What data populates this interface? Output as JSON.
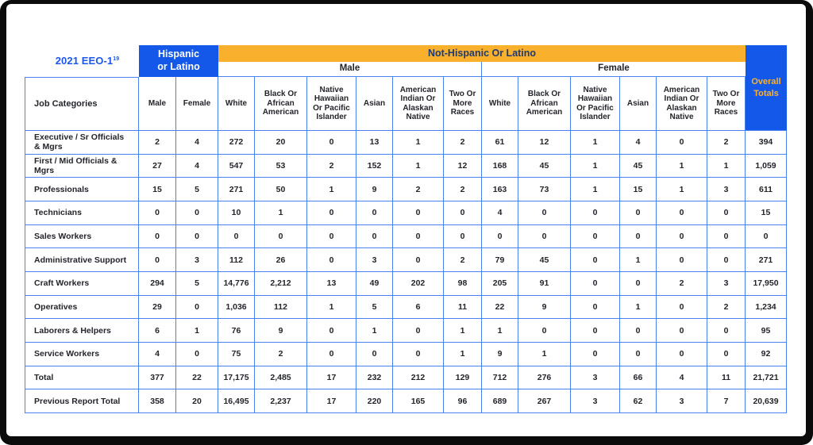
{
  "title": {
    "text": "2021 EEO-1",
    "footnote_superscript": "19"
  },
  "colors": {
    "header_blue": "#1358e8",
    "header_orange": "#f9b02c",
    "border_blue": "#4b82f2",
    "navy_text": "#1e3a72",
    "gold_text": "#f9b233",
    "title_blue": "#1d56ea",
    "body_text": "#23252b",
    "frame_black": "#0b0b0b"
  },
  "chart_data": {
    "type": "table",
    "title": "2021 EEO-1",
    "header": {
      "job_categories": "Job Categories",
      "hispanic_group": "Hispanic or Latino",
      "not_hispanic_group": "Not-Hispanic Or Latino",
      "male_group": "Male",
      "female_group": "Female",
      "overall_totals": "Overall Totals",
      "hispanic_subcolumns": [
        "Male",
        "Female"
      ],
      "race_subcolumns": [
        "White",
        "Black Or African American",
        "Native Hawaiian Or Pacific Islander",
        "Asian",
        "American Indian Or Alaskan Native",
        "Two Or More Races"
      ]
    },
    "rows": [
      {
        "label": "Executive / Sr Officials & Mgrs",
        "values": [
          "2",
          "4",
          "272",
          "20",
          "0",
          "13",
          "1",
          "2",
          "61",
          "12",
          "1",
          "4",
          "0",
          "2",
          "394"
        ]
      },
      {
        "label": "First / Mid Officials & Mgrs",
        "values": [
          "27",
          "4",
          "547",
          "53",
          "2",
          "152",
          "1",
          "12",
          "168",
          "45",
          "1",
          "45",
          "1",
          "1",
          "1,059"
        ]
      },
      {
        "label": "Professionals",
        "values": [
          "15",
          "5",
          "271",
          "50",
          "1",
          "9",
          "2",
          "2",
          "163",
          "73",
          "1",
          "15",
          "1",
          "3",
          "611"
        ]
      },
      {
        "label": "Technicians",
        "values": [
          "0",
          "0",
          "10",
          "1",
          "0",
          "0",
          "0",
          "0",
          "4",
          "0",
          "0",
          "0",
          "0",
          "0",
          "15"
        ]
      },
      {
        "label": "Sales Workers",
        "values": [
          "0",
          "0",
          "0",
          "0",
          "0",
          "0",
          "0",
          "0",
          "0",
          "0",
          "0",
          "0",
          "0",
          "0",
          "0"
        ]
      },
      {
        "label": "Administrative Support",
        "values": [
          "0",
          "3",
          "112",
          "26",
          "0",
          "3",
          "0",
          "2",
          "79",
          "45",
          "0",
          "1",
          "0",
          "0",
          "271"
        ]
      },
      {
        "label": "Craft Workers",
        "values": [
          "294",
          "5",
          "14,776",
          "2,212",
          "13",
          "49",
          "202",
          "98",
          "205",
          "91",
          "0",
          "0",
          "2",
          "3",
          "17,950"
        ]
      },
      {
        "label": "Operatives",
        "values": [
          "29",
          "0",
          "1,036",
          "112",
          "1",
          "5",
          "6",
          "11",
          "22",
          "9",
          "0",
          "1",
          "0",
          "2",
          "1,234"
        ]
      },
      {
        "label": "Laborers & Helpers",
        "values": [
          "6",
          "1",
          "76",
          "9",
          "0",
          "1",
          "0",
          "1",
          "1",
          "0",
          "0",
          "0",
          "0",
          "0",
          "95"
        ]
      },
      {
        "label": "Service Workers",
        "values": [
          "4",
          "0",
          "75",
          "2",
          "0",
          "0",
          "0",
          "1",
          "9",
          "1",
          "0",
          "0",
          "0",
          "0",
          "92"
        ]
      },
      {
        "label": "Total",
        "values": [
          "377",
          "22",
          "17,175",
          "2,485",
          "17",
          "232",
          "212",
          "129",
          "712",
          "276",
          "3",
          "66",
          "4",
          "11",
          "21,721"
        ]
      },
      {
        "label": "Previous Report Total",
        "values": [
          "358",
          "20",
          "16,495",
          "2,237",
          "17",
          "220",
          "165",
          "96",
          "689",
          "267",
          "3",
          "62",
          "3",
          "7",
          "20,639"
        ]
      }
    ]
  }
}
